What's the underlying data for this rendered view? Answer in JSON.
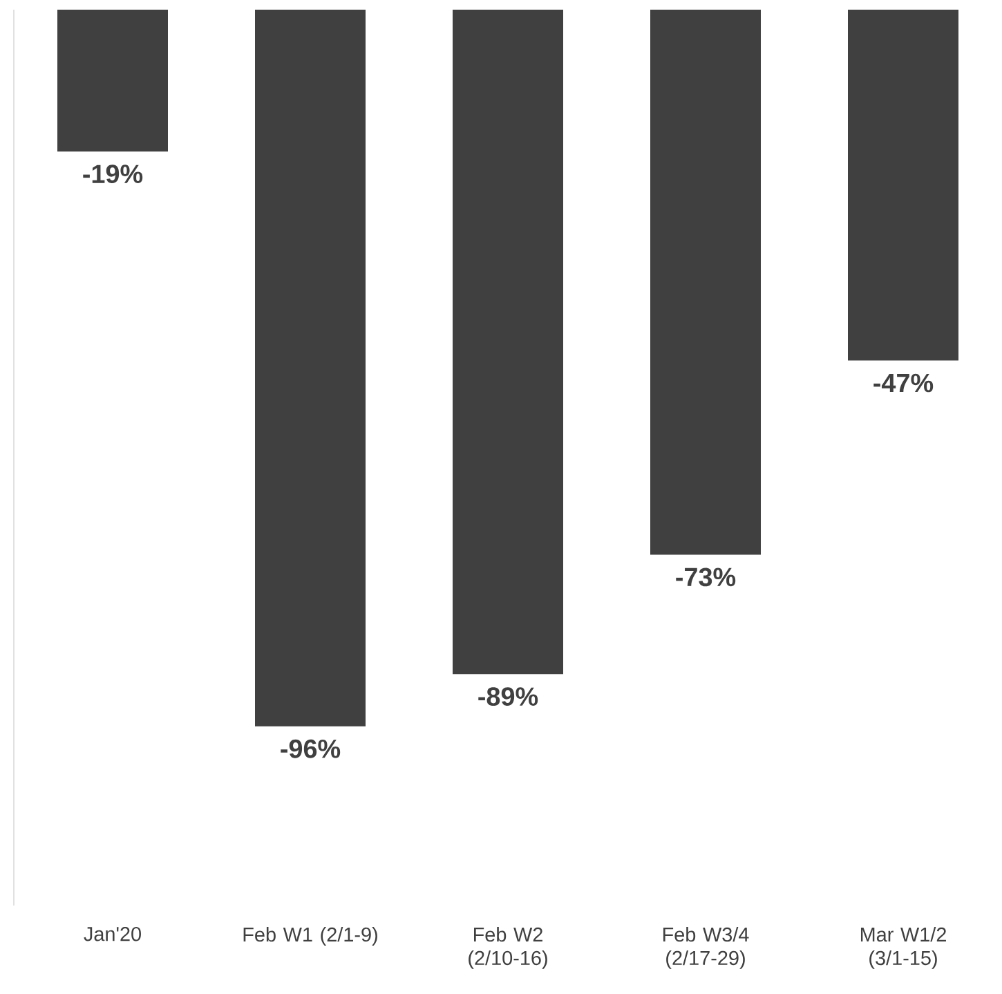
{
  "chart_data": {
    "type": "bar",
    "categories": [
      "Jan'20",
      "Feb W1 (2/1-9)",
      "Feb W2 (2/10-16)",
      "Feb W3/4 (2/17-29)",
      "Mar W1/2 (3/1-15)"
    ],
    "values": [
      -19,
      -96,
      -89,
      -73,
      -47
    ],
    "value_labels": [
      "-19%",
      "-96%",
      "-89%",
      "-73%",
      "-47%"
    ],
    "color": "#404040",
    "ylim": [
      -120,
      0
    ]
  }
}
